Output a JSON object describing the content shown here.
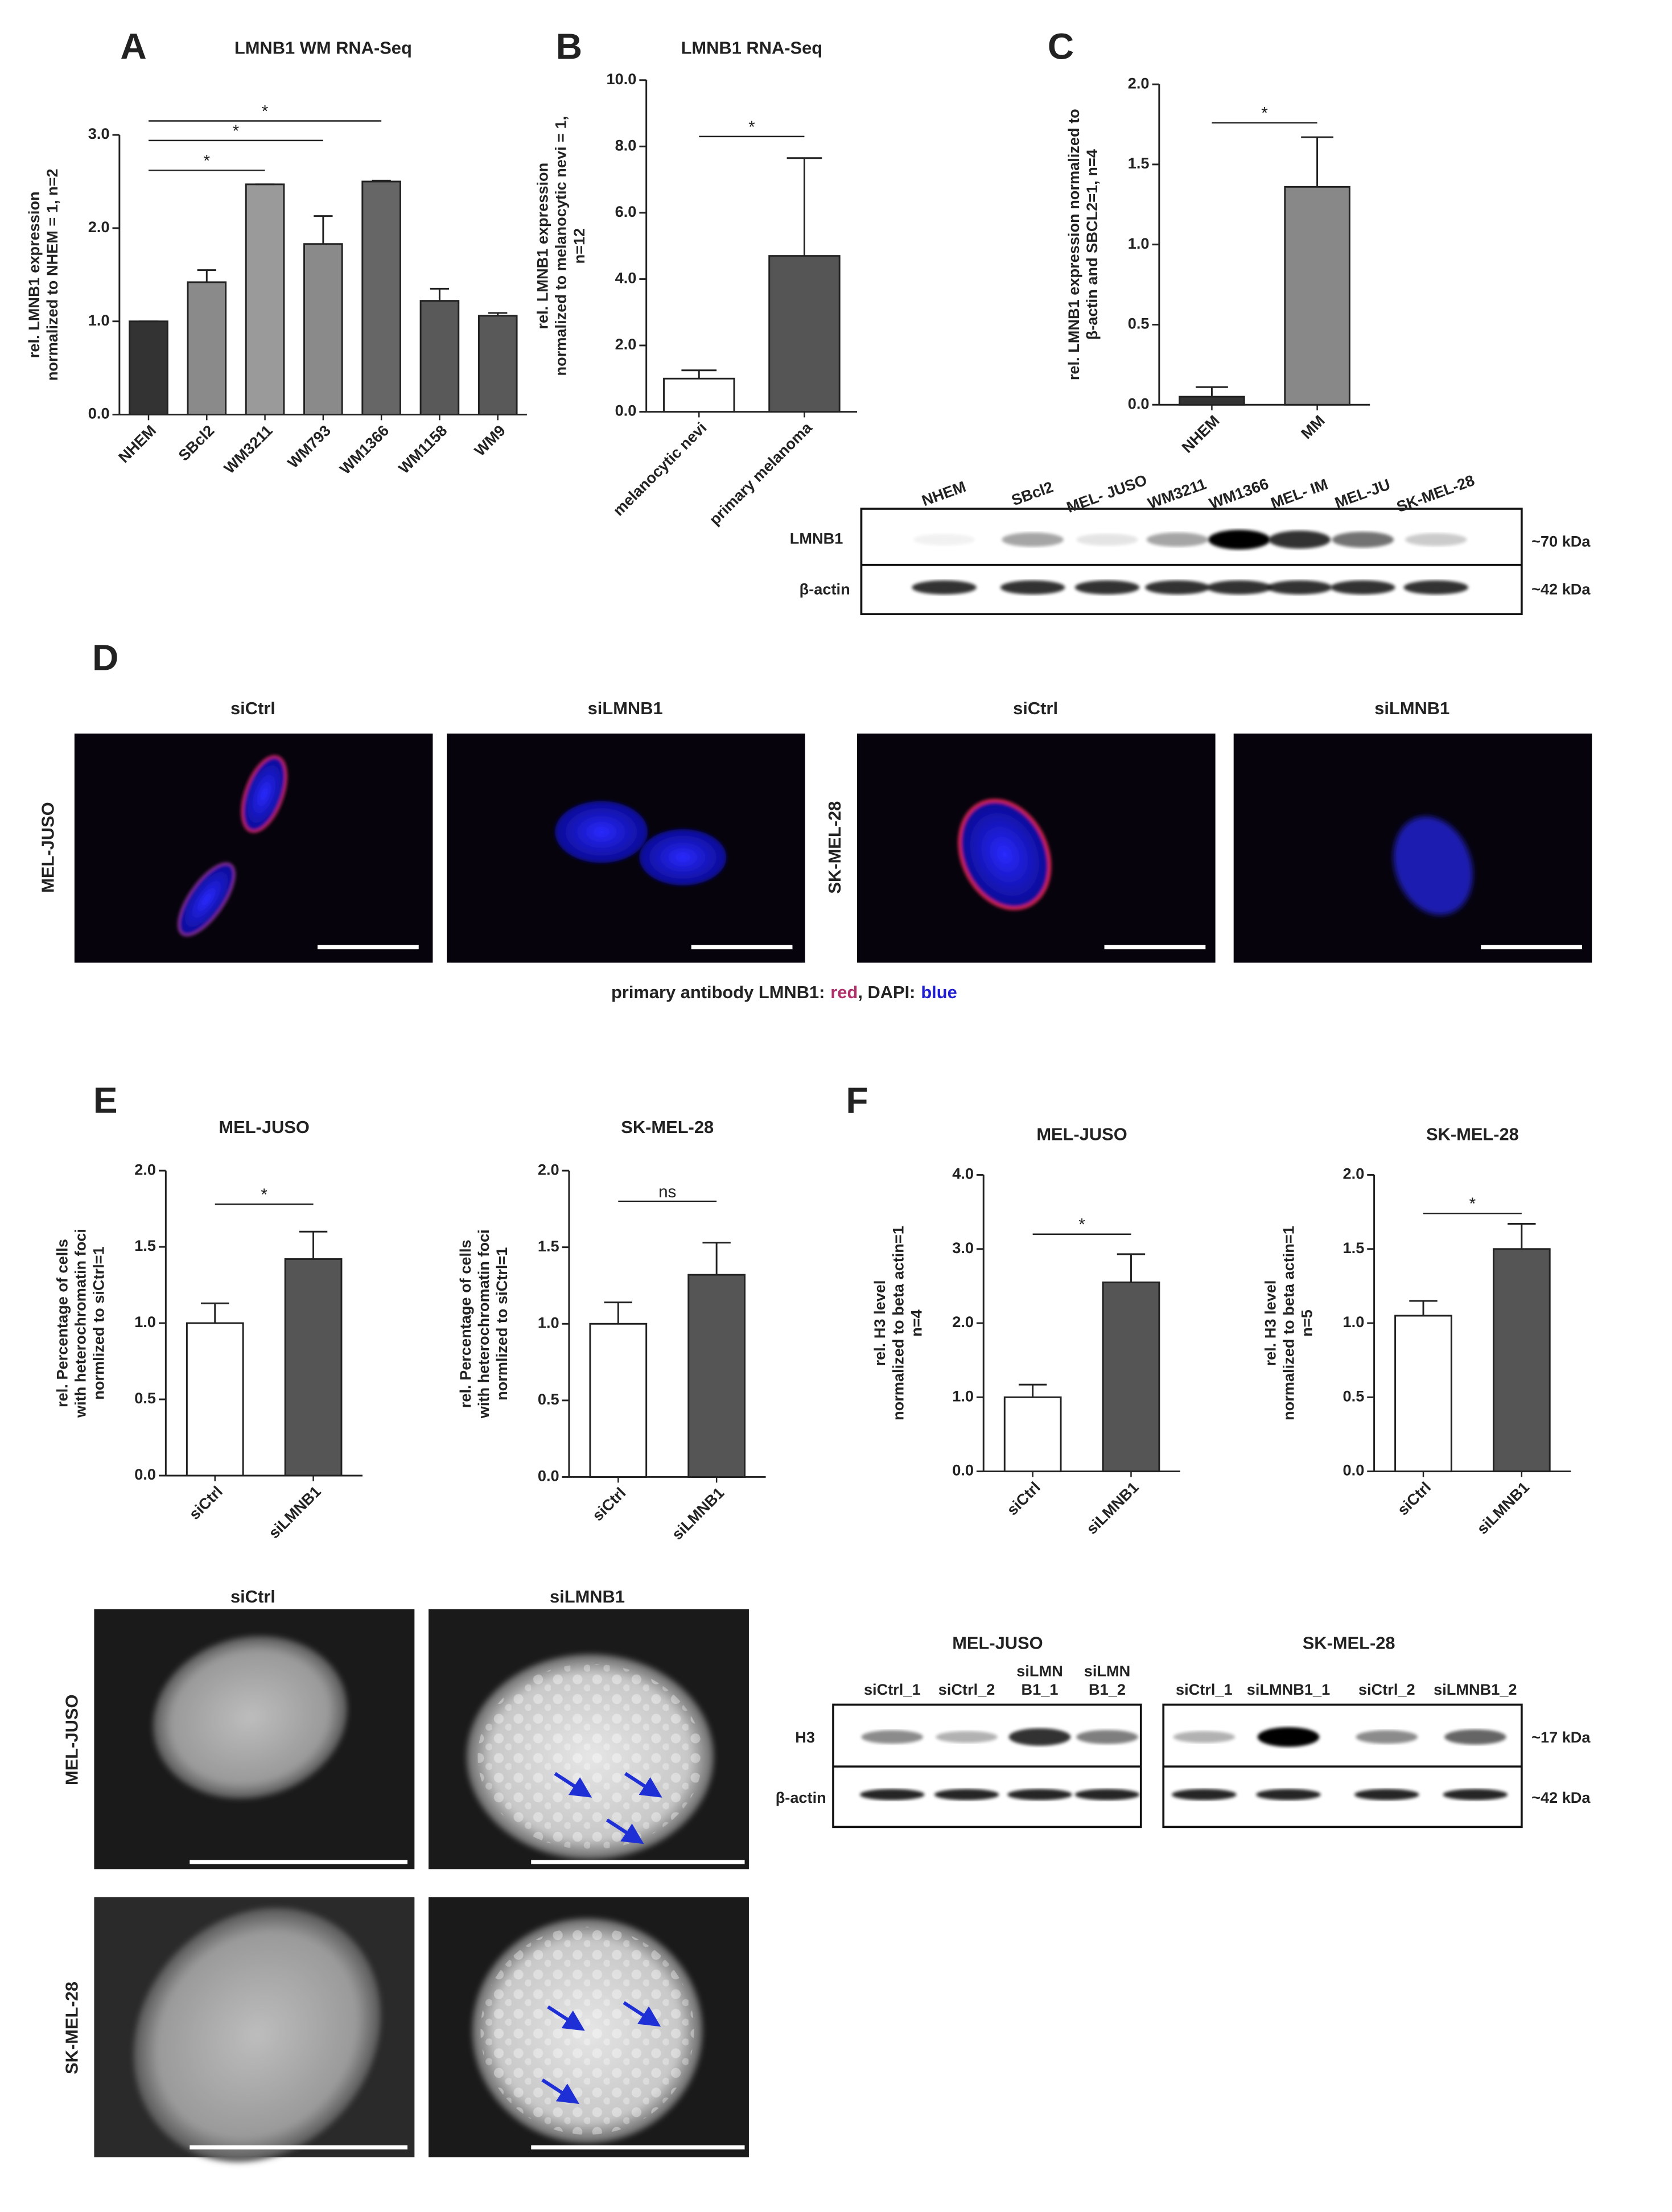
{
  "panel_letters": [
    "A",
    "B",
    "C",
    "D",
    "E",
    "F"
  ],
  "chart_data": [
    {
      "type": "bar",
      "title": "LMNB1 WM RNA-Seq",
      "ylabel": [
        "rel. LMNB1 expression",
        "normalized to NHEM = 1, n=2"
      ],
      "categories": [
        "NHEM",
        "SBcl2",
        "WM3211",
        "WM793",
        "WM1366",
        "WM1158",
        "WM9"
      ],
      "values": [
        1.0,
        1.42,
        2.47,
        1.83,
        2.5,
        1.22,
        1.06
      ],
      "errors": [
        0.0,
        0.13,
        0.0,
        0.3,
        0.01,
        0.13,
        0.03
      ],
      "colors": [
        "#333333",
        "#8a8a8a",
        "#9a9a9a",
        "#8a8a8a",
        "#666666",
        "#595959",
        "#595959"
      ],
      "ylim": [
        0,
        3
      ],
      "yticks": [
        {
          "value": 0,
          "label": "0.0"
        },
        {
          "value": 1,
          "label": "1.0"
        },
        {
          "value": 2,
          "label": "2.0"
        },
        {
          "value": 3,
          "label": "3.0"
        }
      ],
      "annotations": [
        {
          "text": "*",
          "from": "NHEM",
          "to": "WM3211",
          "y": 2.62
        },
        {
          "text": "*",
          "from": "NHEM",
          "to": "WM793",
          "y": 2.94
        },
        {
          "text": "*",
          "from": "NHEM",
          "to": "WM1366",
          "y": 3.15
        }
      ]
    },
    {
      "type": "bar",
      "title": "LMNB1 RNA-Seq",
      "ylabel": [
        "rel. LMNB1 expression",
        "normalized to melanocytic nevi = 1,",
        "n=12"
      ],
      "categories": [
        "melanocytic nevi",
        "primary melanoma"
      ],
      "values": [
        1.0,
        4.7
      ],
      "errors": [
        0.25,
        2.95
      ],
      "colors": [
        "#ffffff",
        "#555555"
      ],
      "ylim": [
        0,
        10
      ],
      "yticks": [
        {
          "value": 0,
          "label": "0.0"
        },
        {
          "value": 2,
          "label": "2.0"
        },
        {
          "value": 4,
          "label": "4.0"
        },
        {
          "value": 6,
          "label": "6.0"
        },
        {
          "value": 8,
          "label": "8.0"
        },
        {
          "value": 10,
          "label": "10.0"
        }
      ],
      "annotations": [
        {
          "text": "*",
          "from": "melanocytic nevi",
          "to": "primary melanoma",
          "y": 8.3
        }
      ]
    },
    {
      "type": "bar",
      "ylabel": [
        "rel. LMNB1 expression normalized to",
        "β-actin and SBCL2=1, n=4"
      ],
      "categories": [
        "NHEM",
        "MM"
      ],
      "values": [
        0.05,
        1.36
      ],
      "errors": [
        0.06,
        0.31
      ],
      "colors": [
        "#333333",
        "#888888"
      ],
      "ylim": [
        0,
        2
      ],
      "yticks": [
        {
          "value": 0,
          "label": "0.0"
        },
        0.5,
        {
          "value": 1,
          "label": "1.0"
        },
        1.5,
        {
          "value": 2,
          "label": "2.0"
        }
      ],
      "annotations": [
        {
          "text": "*",
          "from": "NHEM",
          "to": "MM",
          "y": 1.76
        }
      ]
    },
    {
      "type": "bar",
      "title": "MEL-JUSO",
      "ylabel": [
        "rel. Percentage of cells",
        "with heterochromatin foci",
        "normlized to siCtrl=1"
      ],
      "categories": [
        "siCtrl",
        "siLMNB1"
      ],
      "values": [
        1.0,
        1.42
      ],
      "errors": [
        0.13,
        0.18
      ],
      "colors": [
        "#ffffff",
        "#555555"
      ],
      "ylim": [
        0,
        2
      ],
      "yticks": [
        {
          "value": 0,
          "label": "0.0"
        },
        0.5,
        {
          "value": 1,
          "label": "1.0"
        },
        1.5,
        {
          "value": 2,
          "label": "2.0"
        }
      ],
      "annotations": [
        {
          "text": "*",
          "from": "siCtrl",
          "to": "siLMNB1",
          "y": 1.78
        }
      ]
    },
    {
      "type": "bar",
      "title": "SK-MEL-28",
      "ylabel": [
        "rel. Percentage of cells",
        "with heterochromatin foci",
        "normlized to siCtrl=1"
      ],
      "categories": [
        "siCtrl",
        "siLMNB1"
      ],
      "values": [
        1.0,
        1.32
      ],
      "errors": [
        0.14,
        0.21
      ],
      "colors": [
        "#ffffff",
        "#555555"
      ],
      "ylim": [
        0,
        2
      ],
      "yticks": [
        {
          "value": 0,
          "label": "0.0"
        },
        0.5,
        {
          "value": 1,
          "label": "1.0"
        },
        1.5,
        {
          "value": 2,
          "label": "2.0"
        }
      ],
      "annotations": [
        {
          "text": "ns",
          "from": "siCtrl",
          "to": "siLMNB1",
          "y": 1.8
        }
      ]
    },
    {
      "type": "bar",
      "title": "MEL-JUSO",
      "ylabel": [
        "rel. H3 level",
        "normalized to beta actin=1",
        "n=4"
      ],
      "categories": [
        "siCtrl",
        "siLMNB1"
      ],
      "values": [
        1.0,
        2.55
      ],
      "errors": [
        0.17,
        0.38
      ],
      "colors": [
        "#ffffff",
        "#555555"
      ],
      "ylim": [
        0,
        4
      ],
      "yticks": [
        {
          "value": 0,
          "label": "0.0"
        },
        {
          "value": 1,
          "label": "1.0"
        },
        {
          "value": 2,
          "label": "2.0"
        },
        {
          "value": 3,
          "label": "3.0"
        },
        {
          "value": 4,
          "label": "4.0"
        }
      ],
      "annotations": [
        {
          "text": "*",
          "from": "siCtrl",
          "to": "siLMNB1",
          "y": 3.2
        }
      ]
    },
    {
      "type": "bar",
      "title": "SK-MEL-28",
      "ylabel": [
        "rel. H3 level",
        "normalized to beta actin=1",
        "n=5"
      ],
      "categories": [
        "siCtrl",
        "siLMNB1"
      ],
      "values": [
        1.05,
        1.5
      ],
      "errors": [
        0.1,
        0.17
      ],
      "colors": [
        "#ffffff",
        "#555555"
      ],
      "ylim": [
        0,
        2
      ],
      "yticks": [
        {
          "value": 0,
          "label": "0.0"
        },
        0.5,
        {
          "value": 1,
          "label": "1.0"
        },
        1.5,
        {
          "value": 2,
          "label": "2.0"
        }
      ],
      "annotations": [
        {
          "text": "*",
          "from": "siCtrl",
          "to": "siLMNB1",
          "y": 1.74
        }
      ]
    }
  ],
  "blot_c": {
    "lanes": [
      "NHEM",
      "SBcl2",
      "MEL- JUSO",
      "WM3211",
      "WM1366",
      "MEL- IM",
      "MEL-JU",
      "SK-MEL-28"
    ],
    "rows": [
      "LMNB1",
      "β-actin"
    ],
    "sizes": [
      "~70 kDa",
      "~42 kDa"
    ]
  },
  "microscopy_d": {
    "columns": [
      "siCtrl",
      "siLMNB1",
      "siCtrl",
      "siLMNB1"
    ],
    "rows": [
      "MEL-JUSO",
      "SK-MEL-28"
    ],
    "caption": [
      "primary antibody LMNB1:",
      "red",
      ", DAPI:",
      "blue"
    ]
  },
  "microscopy_e": {
    "columns": [
      "siCtrl",
      "siLMNB1"
    ],
    "rows": [
      "MEL-JUSO",
      "SK-MEL-28"
    ]
  },
  "blot_f": {
    "groups": [
      {
        "title": "MEL-JUSO",
        "lanes": [
          "siCtrl_1",
          "siCtrl_2",
          "siLMN B1_1",
          "siLMN B1_2"
        ]
      },
      {
        "title": "SK-MEL-28",
        "lanes": [
          "siCtrl_1",
          "siLMNB1_1",
          "siCtrl_2",
          "siLMNB1_2"
        ]
      }
    ],
    "rows": [
      "H3",
      "β-actin"
    ],
    "sizes": [
      "~17 kDa",
      "~42 kDa"
    ]
  }
}
